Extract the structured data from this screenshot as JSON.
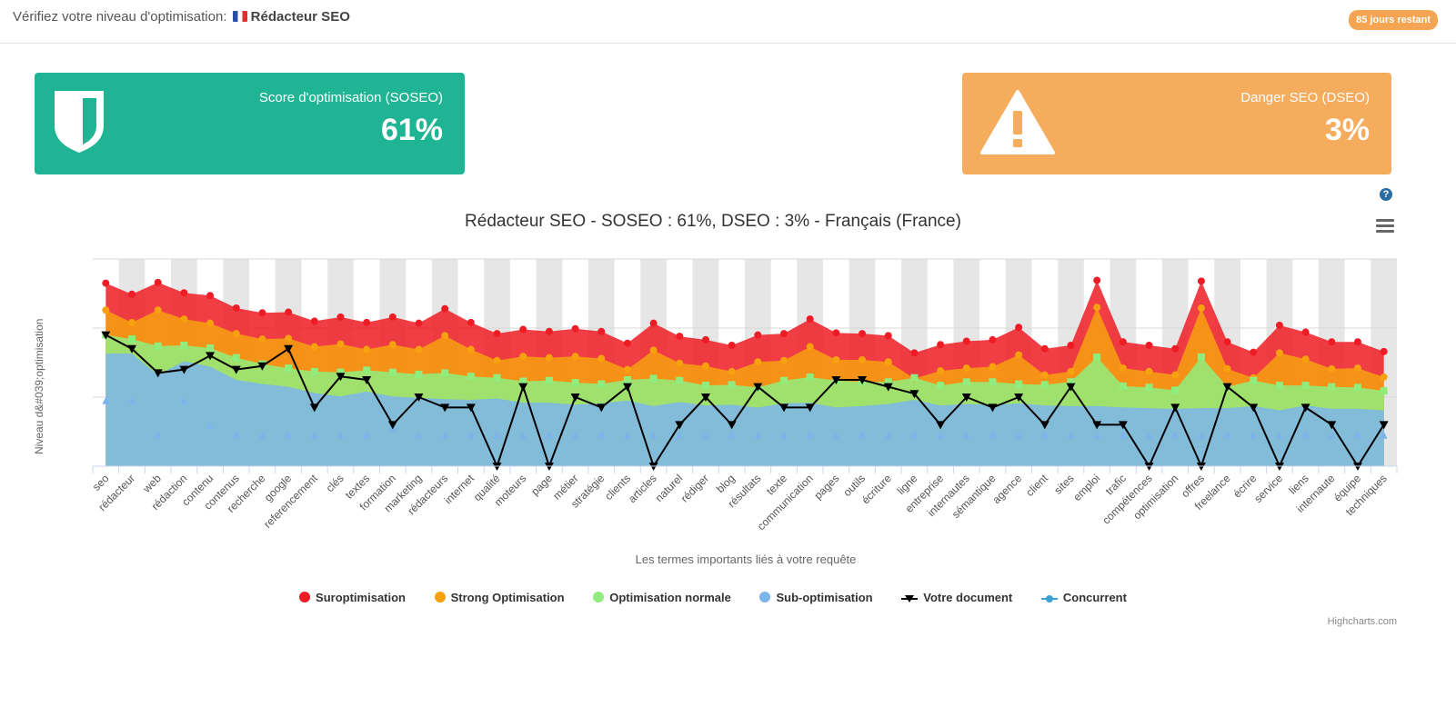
{
  "header": {
    "title_prefix": "Vérifiez votre niveau d'optimisation:",
    "title_query": "Rédacteur SEO",
    "days_badge": "85 jours restant"
  },
  "cards": {
    "soseo": {
      "label": "Score d'optimisation (SOSEO)",
      "value": "61%",
      "color": "#1fb594",
      "icon": "shield-icon"
    },
    "dseo": {
      "label": "Danger SEO (DSEO)",
      "value": "3%",
      "color": "#f5ac5c",
      "icon": "warning-icon"
    }
  },
  "toolbar": {
    "help": "?",
    "menu_icon": "hamburger-menu-icon"
  },
  "credits": "Highcharts.com",
  "chart_data": {
    "type": "area",
    "title": "Rédacteur SEO - SOSEO : 61%, DSEO : 3% - Français (France)",
    "xlabel": "Les termes importants liés à votre requête",
    "ylabel": "Niveau d&#039;optimisation",
    "ylim": [
      0,
      30
    ],
    "grid": true,
    "legend_position": "bottom",
    "categories": [
      "seo",
      "rédacteur",
      "web",
      "rédaction",
      "contenu",
      "contenus",
      "recherche",
      "google",
      "referencement",
      "clés",
      "textes",
      "formation",
      "marketing",
      "rédacteurs",
      "internet",
      "qualité",
      "moteurs",
      "page",
      "métier",
      "stratégie",
      "clients",
      "articles",
      "naturel",
      "rédiger",
      "blog",
      "résultats",
      "texte",
      "communication",
      "pages",
      "outils",
      "écriture",
      "ligne",
      "entreprise",
      "internautes",
      "sémantique",
      "agence",
      "client",
      "sites",
      "emploi",
      "trafic",
      "compétences",
      "optimisation",
      "offres",
      "freelance",
      "écrire",
      "service",
      "liens",
      "internaute",
      "équipe",
      "techniques"
    ],
    "series": [
      {
        "name": "Suroptimisation",
        "color": "#ee1c25",
        "values": [
          26.5,
          24.9,
          26.6,
          25.1,
          24.7,
          22.9,
          22.2,
          22.3,
          21.0,
          21.6,
          20.8,
          21.6,
          20.7,
          22.8,
          20.8,
          19.2,
          19.8,
          19.5,
          19.9,
          19.5,
          17.8,
          20.7,
          18.8,
          18.3,
          17.5,
          19.0,
          19.2,
          21.3,
          19.3,
          19.2,
          18.9,
          16.4,
          17.6,
          18.1,
          18.3,
          20.1,
          17.0,
          17.5,
          26.9,
          18.0,
          17.5,
          17.0,
          26.8,
          18.0,
          16.5,
          20.4,
          19.4,
          18.0,
          18.0,
          16.6
        ]
      },
      {
        "name": "Strong Optimisation",
        "color": "#f7a10f",
        "values": [
          22.6,
          20.8,
          22.6,
          21.3,
          20.7,
          19.2,
          18.4,
          18.5,
          17.3,
          17.7,
          16.9,
          17.6,
          16.9,
          18.9,
          16.9,
          15.3,
          15.9,
          15.7,
          15.9,
          15.6,
          14.0,
          16.8,
          14.9,
          14.5,
          13.7,
          15.1,
          15.3,
          17.3,
          15.4,
          15.4,
          15.1,
          12.7,
          13.8,
          14.2,
          14.4,
          16.1,
          13.2,
          13.7,
          23.0,
          14.2,
          13.7,
          13.2,
          22.9,
          14.1,
          12.8,
          16.4,
          15.5,
          14.1,
          14.2,
          12.9
        ]
      },
      {
        "name": "Optimisation normale",
        "color": "#90ed7d",
        "values": [
          19.0,
          18.4,
          17.4,
          17.5,
          17.1,
          15.7,
          14.8,
          14.2,
          13.7,
          13.6,
          13.9,
          13.6,
          13.3,
          13.5,
          13.0,
          12.8,
          12.3,
          12.4,
          12.1,
          11.9,
          12.5,
          12.7,
          12.4,
          11.7,
          11.8,
          11.4,
          12.4,
          12.9,
          12.4,
          12.2,
          12.2,
          12.8,
          11.7,
          12.2,
          12.2,
          11.9,
          11.8,
          12.2,
          15.8,
          11.6,
          11.4,
          11.0,
          15.8,
          11.5,
          12.4,
          11.7,
          11.7,
          11.5,
          11.4,
          10.9
        ]
      },
      {
        "name": "Sub-optimisation",
        "color": "#7cb5ec",
        "values": [
          16.3,
          16.3,
          13.2,
          15.2,
          14.4,
          12.5,
          11.9,
          11.5,
          10.6,
          10.1,
          10.8,
          10.1,
          9.9,
          9.7,
          9.6,
          9.8,
          9.2,
          9.2,
          8.9,
          9.1,
          9.5,
          8.7,
          9.3,
          8.8,
          8.9,
          8.5,
          9.1,
          9.2,
          8.5,
          8.7,
          9.0,
          9.6,
          8.8,
          9.0,
          8.9,
          9.1,
          8.8,
          8.7,
          8.7,
          8.5,
          8.4,
          8.3,
          8.4,
          8.4,
          8.7,
          8.1,
          8.8,
          8.3,
          8.3,
          8.1
        ]
      },
      {
        "name": "Votre document",
        "color": "#000000",
        "values": [
          19.0,
          17.0,
          13.5,
          14.0,
          16.0,
          14.0,
          14.5,
          17.0,
          8.5,
          13.0,
          12.5,
          6.0,
          10.0,
          8.5,
          8.5,
          0.0,
          11.5,
          0.0,
          10.0,
          8.5,
          11.5,
          0.0,
          6.0,
          10.0,
          6.0,
          11.5,
          8.5,
          8.5,
          12.5,
          12.5,
          11.5,
          10.5,
          6.0,
          10.0,
          8.5,
          10.0,
          6.0,
          11.5,
          6.0,
          6.0,
          0.0,
          8.5,
          0.0,
          11.5,
          8.5,
          0.0,
          8.5,
          6.0,
          0.0,
          6.0
        ]
      },
      {
        "name": "Concurrent",
        "color": "#3ca1d6",
        "values": [
          9.5,
          9.5,
          4.5,
          9.5,
          6.0,
          4.5,
          4.5,
          4.5,
          4.5,
          4.5,
          4.5,
          5.5,
          4.5,
          4.5,
          4.5,
          4.5,
          4.5,
          4.5,
          4.5,
          4.5,
          4.5,
          4.5,
          4.5,
          4.5,
          4.5,
          4.5,
          4.5,
          4.5,
          4.5,
          4.5,
          4.5,
          4.5,
          4.5,
          4.5,
          4.5,
          4.5,
          4.5,
          4.5,
          4.5,
          4.5,
          4.5,
          4.5,
          4.5,
          4.5,
          4.5,
          4.5,
          4.5,
          4.5,
          4.5,
          4.5
        ]
      }
    ]
  }
}
